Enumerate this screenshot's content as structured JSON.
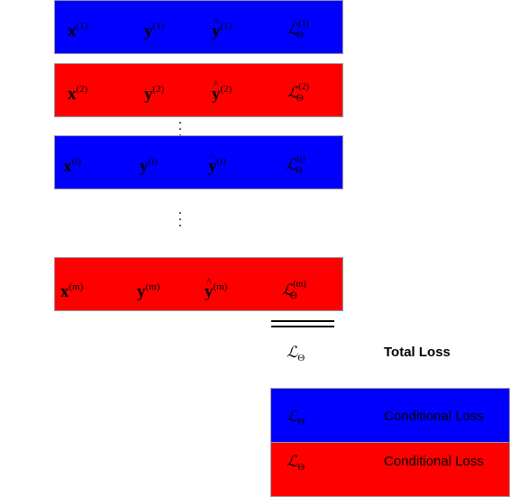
{
  "colors": {
    "blue": "#0000ff",
    "red": "#ff0000"
  },
  "rows": [
    {
      "color": "blue",
      "x_sup": "(1)",
      "y_sup": "(1)",
      "yhat_sup": "(1)",
      "loss_sup": "(1)",
      "loss_sub": "Θ"
    },
    {
      "color": "red",
      "x_sup": "(2)",
      "y_sup": "(2)",
      "yhat_sup": "(2)",
      "loss_sup": "(2)",
      "loss_sub": "Θ"
    },
    {
      "color": "blue",
      "x_sup": "(i)",
      "y_sup": "(i)",
      "yhat_sup": "(i)",
      "loss_sup": "(i)",
      "loss_sub": "Θ"
    },
    {
      "color": "red",
      "x_sup": "(m)",
      "y_sup": "(m)",
      "yhat_sup": "(m)",
      "loss_sup": "(m)",
      "loss_sub": "Θ"
    }
  ],
  "symbols": {
    "x": "x",
    "y": "y",
    "yhat": "y",
    "loss": "ℒ"
  },
  "total": {
    "loss": "ℒ",
    "sub": "Θ",
    "label": "Total Loss"
  },
  "conditional": [
    {
      "color": "blue",
      "loss": "ℒ",
      "sub": "Θ",
      "label": "Conditional Loss"
    },
    {
      "color": "red",
      "loss": "ℒ",
      "sub": "Θ",
      "label": "Conditional Loss"
    }
  ]
}
